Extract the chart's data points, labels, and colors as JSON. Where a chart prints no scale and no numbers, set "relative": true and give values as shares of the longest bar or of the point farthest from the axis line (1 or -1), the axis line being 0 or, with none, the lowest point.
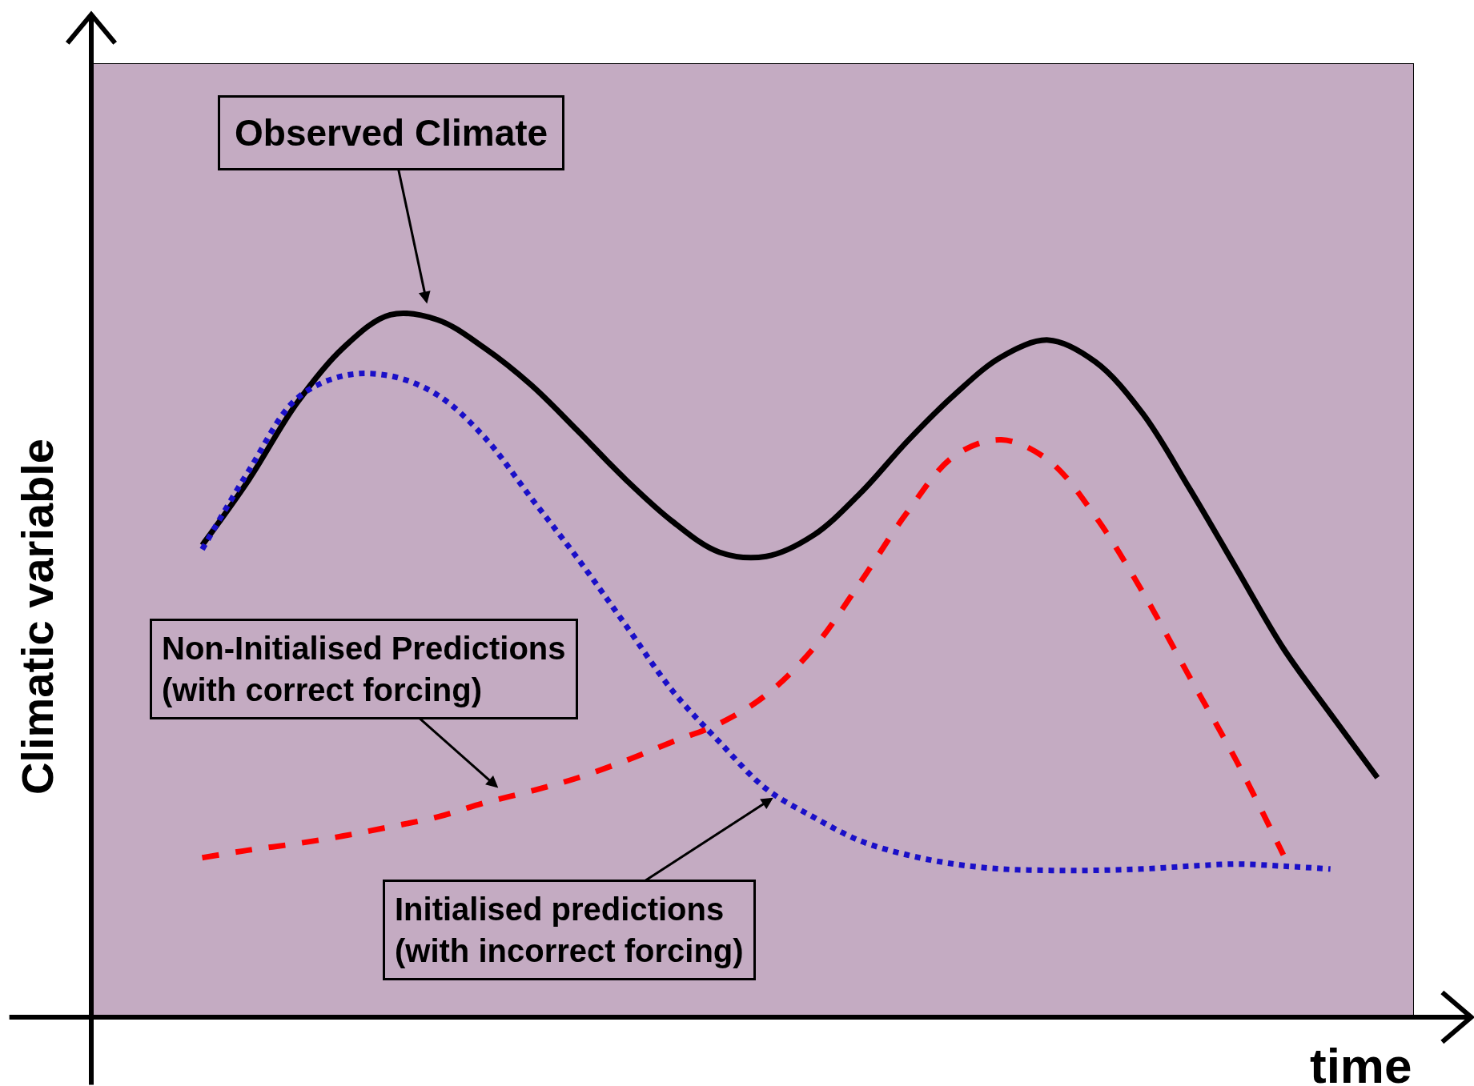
{
  "chart_data": {
    "type": "line",
    "relative": true,
    "xlabel": "time",
    "ylabel": "Climatic variable",
    "categories": [
      null,
      null,
      null,
      null,
      null,
      null,
      null,
      null,
      null,
      null,
      null,
      null,
      null,
      null,
      null,
      null,
      null,
      null,
      null,
      null,
      null,
      null,
      null,
      null,
      null,
      null
    ],
    "series": [
      {
        "color": "#000000",
        "line_style": "solid",
        "values": [
          0.672,
          0.766,
          0.873,
          0.953,
          1.0,
          0.993,
          0.953,
          0.9,
          0.834,
          0.766,
          0.706,
          0.662,
          0.656,
          0.686,
          0.746,
          0.82,
          0.886,
          0.94,
          0.964,
          0.933,
          0.86,
          0.753,
          0.639,
          0.525,
          0.432,
          0.341
        ]
      },
      {
        "color": "#1a0fc8",
        "line_style": "dotted",
        "values": [
          0.666,
          0.779,
          0.88,
          0.913,
          0.913,
          0.886,
          0.826,
          0.739,
          0.652,
          0.559,
          0.465,
          0.392,
          0.325,
          0.285,
          0.251,
          0.231,
          0.218,
          0.211,
          0.209,
          0.209,
          0.211,
          0.215,
          0.218,
          0.215,
          0.211,
          null
        ]
      },
      {
        "color": "#ff0000",
        "line_style": "dashed",
        "values": [
          0.227,
          0.238,
          0.247,
          0.258,
          0.271,
          0.285,
          0.305,
          0.322,
          0.341,
          0.365,
          0.392,
          0.418,
          0.459,
          0.525,
          0.619,
          0.719,
          0.799,
          0.822,
          0.793,
          0.713,
          0.606,
          0.485,
          0.365,
          0.231,
          null,
          null
        ]
      }
    ],
    "annotations": [
      "Observed Climate",
      "Non-Initialised Predictions\n(with correct forcing)",
      "Initialised predictions\n(with incorrect forcing)"
    ]
  }
}
